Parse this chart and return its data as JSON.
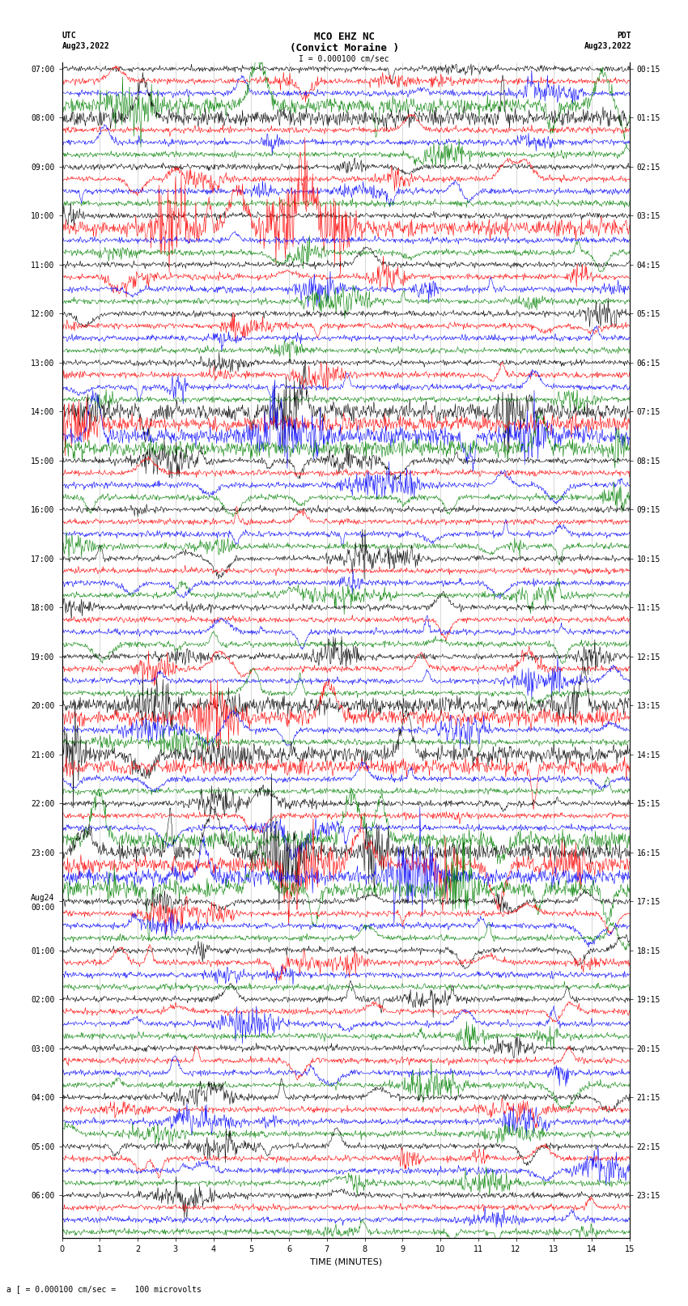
{
  "title_line1": "MCO EHZ NC",
  "title_line2": "(Convict Moraine )",
  "scale_text": "I = 0.000100 cm/sec",
  "bottom_label": "a [ = 0.000100 cm/sec =    100 microvolts",
  "xlabel": "TIME (MINUTES)",
  "utc_labels": [
    "07:00",
    "",
    "",
    "",
    "08:00",
    "",
    "",
    "",
    "09:00",
    "",
    "",
    "",
    "10:00",
    "",
    "",
    "",
    "11:00",
    "",
    "",
    "",
    "12:00",
    "",
    "",
    "",
    "13:00",
    "",
    "",
    "",
    "14:00",
    "",
    "",
    "",
    "15:00",
    "",
    "",
    "",
    "16:00",
    "",
    "",
    "",
    "17:00",
    "",
    "",
    "",
    "18:00",
    "",
    "",
    "",
    "19:00",
    "",
    "",
    "",
    "20:00",
    "",
    "",
    "",
    "21:00",
    "",
    "",
    "",
    "22:00",
    "",
    "",
    "",
    "23:00",
    "",
    "",
    "",
    "Aug24\n00:00",
    "",
    "",
    "",
    "01:00",
    "",
    "",
    "",
    "02:00",
    "",
    "",
    "",
    "03:00",
    "",
    "",
    "",
    "04:00",
    "",
    "",
    "",
    "05:00",
    "",
    "",
    "",
    "06:00",
    "",
    "",
    ""
  ],
  "pdt_labels": [
    "00:15",
    "",
    "",
    "",
    "01:15",
    "",
    "",
    "",
    "02:15",
    "",
    "",
    "",
    "03:15",
    "",
    "",
    "",
    "04:15",
    "",
    "",
    "",
    "05:15",
    "",
    "",
    "",
    "06:15",
    "",
    "",
    "",
    "07:15",
    "",
    "",
    "",
    "08:15",
    "",
    "",
    "",
    "09:15",
    "",
    "",
    "",
    "10:15",
    "",
    "",
    "",
    "11:15",
    "",
    "",
    "",
    "12:15",
    "",
    "",
    "",
    "13:15",
    "",
    "",
    "",
    "14:15",
    "",
    "",
    "",
    "15:15",
    "",
    "",
    "",
    "16:15",
    "",
    "",
    "",
    "17:15",
    "",
    "",
    "",
    "18:15",
    "",
    "",
    "",
    "19:15",
    "",
    "",
    "",
    "20:15",
    "",
    "",
    "",
    "21:15",
    "",
    "",
    "",
    "22:15",
    "",
    "",
    "",
    "23:15",
    "",
    "",
    ""
  ],
  "colors": [
    "black",
    "red",
    "blue",
    "green"
  ],
  "minutes": 15,
  "background_color": "white",
  "grid_color": "gray",
  "title_fontsize": 9,
  "label_fontsize": 7,
  "tick_fontsize": 7
}
